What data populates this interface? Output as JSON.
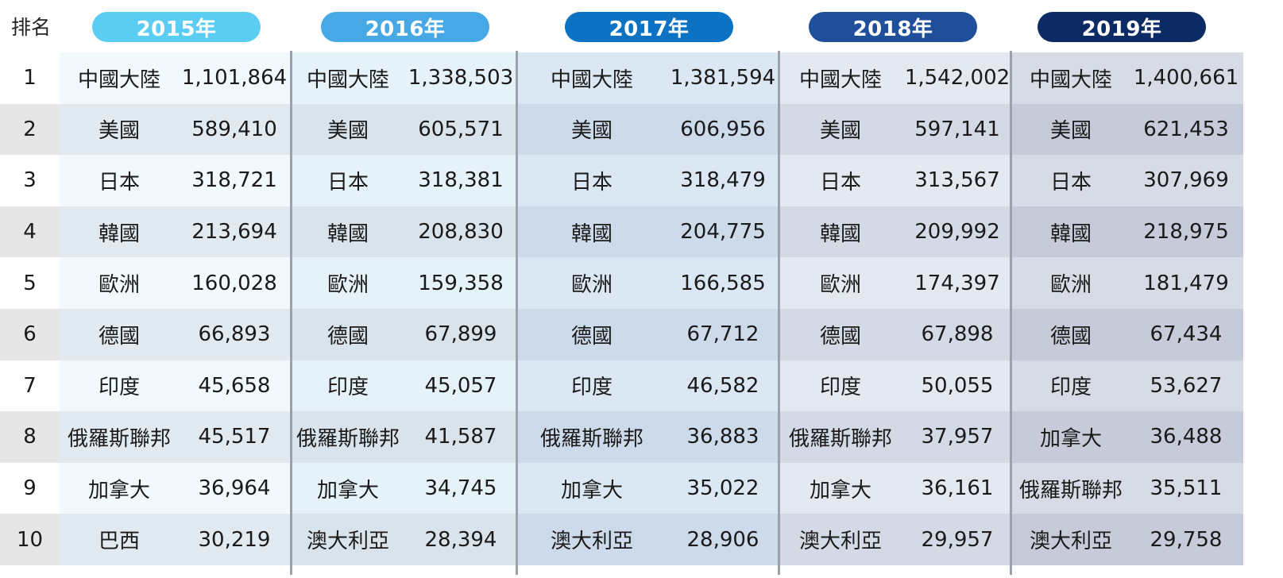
{
  "table": {
    "rank_header": "排名",
    "ranks": [
      "1",
      "2",
      "3",
      "4",
      "5",
      "6",
      "7",
      "8",
      "9",
      "10"
    ],
    "years": [
      {
        "label": "2015年",
        "pill_color": "#5ccdf2",
        "rows": [
          {
            "country": "中國大陸",
            "value": "1,101,864"
          },
          {
            "country": "美國",
            "value": "589,410"
          },
          {
            "country": "日本",
            "value": "318,721"
          },
          {
            "country": "韓國",
            "value": "213,694"
          },
          {
            "country": "歐洲",
            "value": "160,028"
          },
          {
            "country": "德國",
            "value": "66,893"
          },
          {
            "country": "印度",
            "value": "45,658"
          },
          {
            "country": "俄羅斯聯邦",
            "value": "45,517"
          },
          {
            "country": "加拿大",
            "value": "36,964"
          },
          {
            "country": "巴西",
            "value": "30,219"
          }
        ]
      },
      {
        "label": "2016年",
        "pill_color": "#47a8e6",
        "rows": [
          {
            "country": "中國大陸",
            "value": "1,338,503"
          },
          {
            "country": "美國",
            "value": "605,571"
          },
          {
            "country": "日本",
            "value": "318,381"
          },
          {
            "country": "韓國",
            "value": "208,830"
          },
          {
            "country": "歐洲",
            "value": "159,358"
          },
          {
            "country": "德國",
            "value": "67,899"
          },
          {
            "country": "印度",
            "value": "45,057"
          },
          {
            "country": "俄羅斯聯邦",
            "value": "41,587"
          },
          {
            "country": "加拿大",
            "value": "34,745"
          },
          {
            "country": "澳大利亞",
            "value": "28,394"
          }
        ]
      },
      {
        "label": "2017年",
        "pill_color": "#0b72c4",
        "rows": [
          {
            "country": "中國大陸",
            "value": "1,381,594"
          },
          {
            "country": "美國",
            "value": "606,956"
          },
          {
            "country": "日本",
            "value": "318,479"
          },
          {
            "country": "韓國",
            "value": "204,775"
          },
          {
            "country": "歐洲",
            "value": "166,585"
          },
          {
            "country": "德國",
            "value": "67,712"
          },
          {
            "country": "印度",
            "value": "46,582"
          },
          {
            "country": "俄羅斯聯邦",
            "value": "36,883"
          },
          {
            "country": "加拿大",
            "value": "35,022"
          },
          {
            "country": "澳大利亞",
            "value": "28,906"
          }
        ]
      },
      {
        "label": "2018年",
        "pill_color": "#1f4f9a",
        "rows": [
          {
            "country": "中國大陸",
            "value": "1,542,002"
          },
          {
            "country": "美國",
            "value": "597,141"
          },
          {
            "country": "日本",
            "value": "313,567"
          },
          {
            "country": "韓國",
            "value": "209,992"
          },
          {
            "country": "歐洲",
            "value": "174,397"
          },
          {
            "country": "德國",
            "value": "67,898"
          },
          {
            "country": "印度",
            "value": "50,055"
          },
          {
            "country": "俄羅斯聯邦",
            "value": "37,957"
          },
          {
            "country": "加拿大",
            "value": "36,161"
          },
          {
            "country": "澳大利亞",
            "value": "29,957"
          }
        ]
      },
      {
        "label": "2019年",
        "pill_color": "#0c2a63",
        "rows": [
          {
            "country": "中國大陸",
            "value": "1,400,661"
          },
          {
            "country": "美國",
            "value": "621,453"
          },
          {
            "country": "日本",
            "value": "307,969"
          },
          {
            "country": "韓國",
            "value": "218,975"
          },
          {
            "country": "歐洲",
            "value": "181,479"
          },
          {
            "country": "德國",
            "value": "67,434"
          },
          {
            "country": "印度",
            "value": "53,627"
          },
          {
            "country": "加拿大",
            "value": "36,488"
          },
          {
            "country": "俄羅斯聯邦",
            "value": "35,511"
          },
          {
            "country": "澳大利亞",
            "value": "29,758"
          }
        ]
      }
    ]
  },
  "chart_data": {
    "type": "table",
    "columns": [
      "排名",
      "2015年",
      "2016年",
      "2017年",
      "2018年",
      "2019年"
    ],
    "rows": [
      [
        "1",
        "中國大陸 1,101,864",
        "中國大陸 1,338,503",
        "中國大陸 1,381,594",
        "中國大陸 1,542,002",
        "中國大陸 1,400,661"
      ],
      [
        "2",
        "美國 589,410",
        "美國 605,571",
        "美國 606,956",
        "美國 597,141",
        "美國 621,453"
      ],
      [
        "3",
        "日本 318,721",
        "日本 318,381",
        "日本 318,479",
        "日本 313,567",
        "日本 307,969"
      ],
      [
        "4",
        "韓國 213,694",
        "韓國 208,830",
        "韓國 204,775",
        "韓國 209,992",
        "韓國 218,975"
      ],
      [
        "5",
        "歐洲 160,028",
        "歐洲 159,358",
        "歐洲 166,585",
        "歐洲 174,397",
        "歐洲 181,479"
      ],
      [
        "6",
        "德國 66,893",
        "德國 67,899",
        "德國 67,712",
        "德國 67,898",
        "德國 67,434"
      ],
      [
        "7",
        "印度 45,658",
        "印度 45,057",
        "印度 46,582",
        "印度 50,055",
        "印度 53,627"
      ],
      [
        "8",
        "俄羅斯聯邦 45,517",
        "俄羅斯聯邦 41,587",
        "俄羅斯聯邦 36,883",
        "俄羅斯聯邦 37,957",
        "加拿大 36,488"
      ],
      [
        "9",
        "加拿大 36,964",
        "加拿大 34,745",
        "加拿大 35,022",
        "加拿大 36,161",
        "俄羅斯聯邦 35,511"
      ],
      [
        "10",
        "巴西 30,219",
        "澳大利亞 28,394",
        "澳大利亞 28,906",
        "澳大利亞 29,957",
        "澳大利亞 29,758"
      ]
    ]
  },
  "colors": {
    "rank_light": "#ffffff",
    "rank_dark": "#e6e6e6",
    "col_light": [
      "#f1f9fd",
      "#e6f2fa",
      "#dbe8f3",
      "#e3e8f1",
      "#d7dbe6"
    ],
    "col_dark": [
      "#e2eaf1",
      "#d8e3ec",
      "#ccdaea",
      "#d3d9e5",
      "#c6cad9"
    ],
    "divider": "#9aa3ad"
  }
}
